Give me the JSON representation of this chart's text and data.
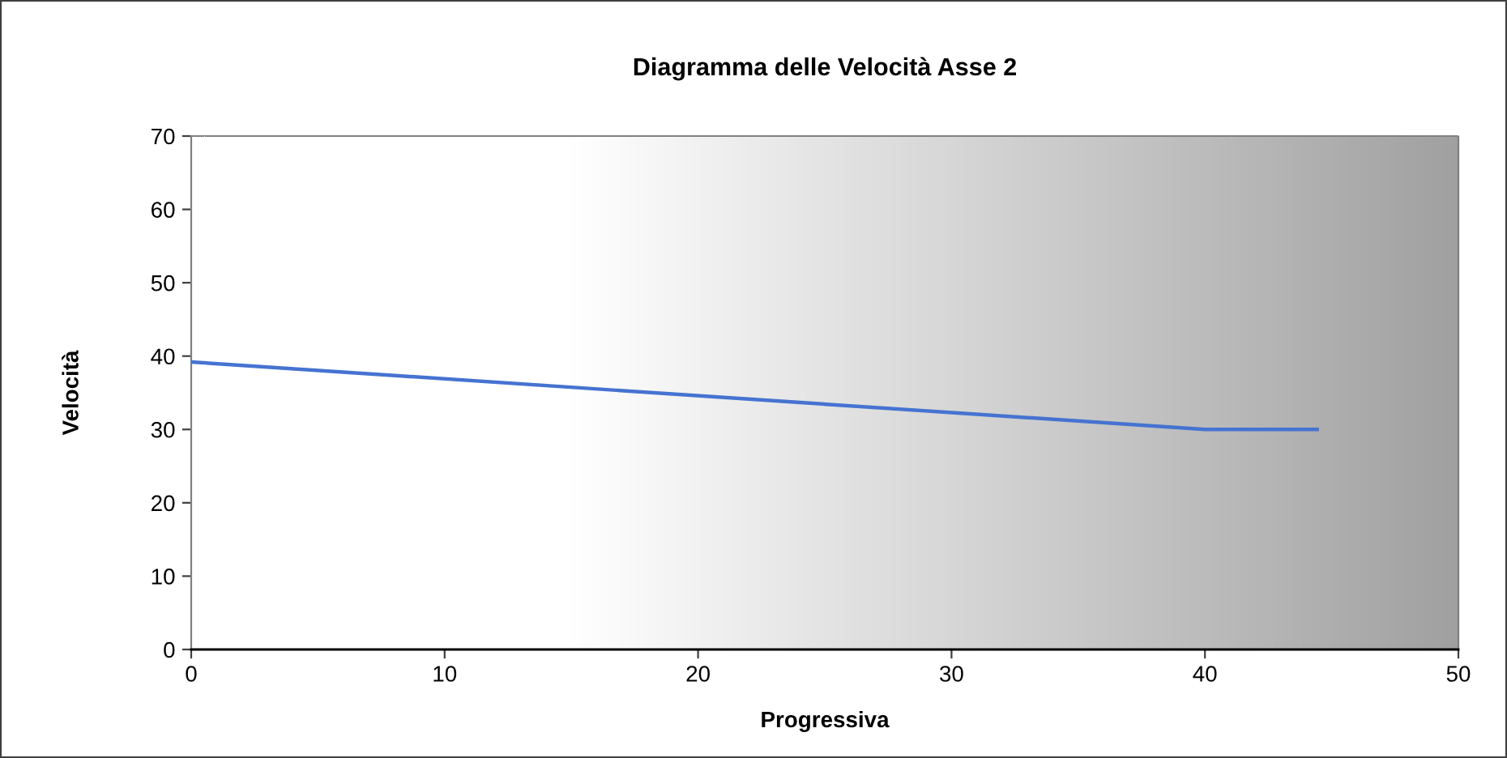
{
  "chart_data": {
    "type": "line",
    "title": "Diagramma delle Velocità Asse 2",
    "xlabel": "Progressiva",
    "ylabel": "Velocità",
    "x": [
      0,
      40,
      44.5
    ],
    "series": [
      {
        "color": "#4673d1",
        "values": [
          39.2,
          30,
          30
        ]
      }
    ],
    "xlim": [
      0,
      50
    ],
    "ylim": [
      0,
      70
    ],
    "xticks": [
      0,
      10,
      20,
      30,
      40,
      50
    ],
    "yticks": [
      0,
      10,
      20,
      30,
      40,
      50,
      60,
      70
    ],
    "marker": "none",
    "line_style": "solid"
  }
}
